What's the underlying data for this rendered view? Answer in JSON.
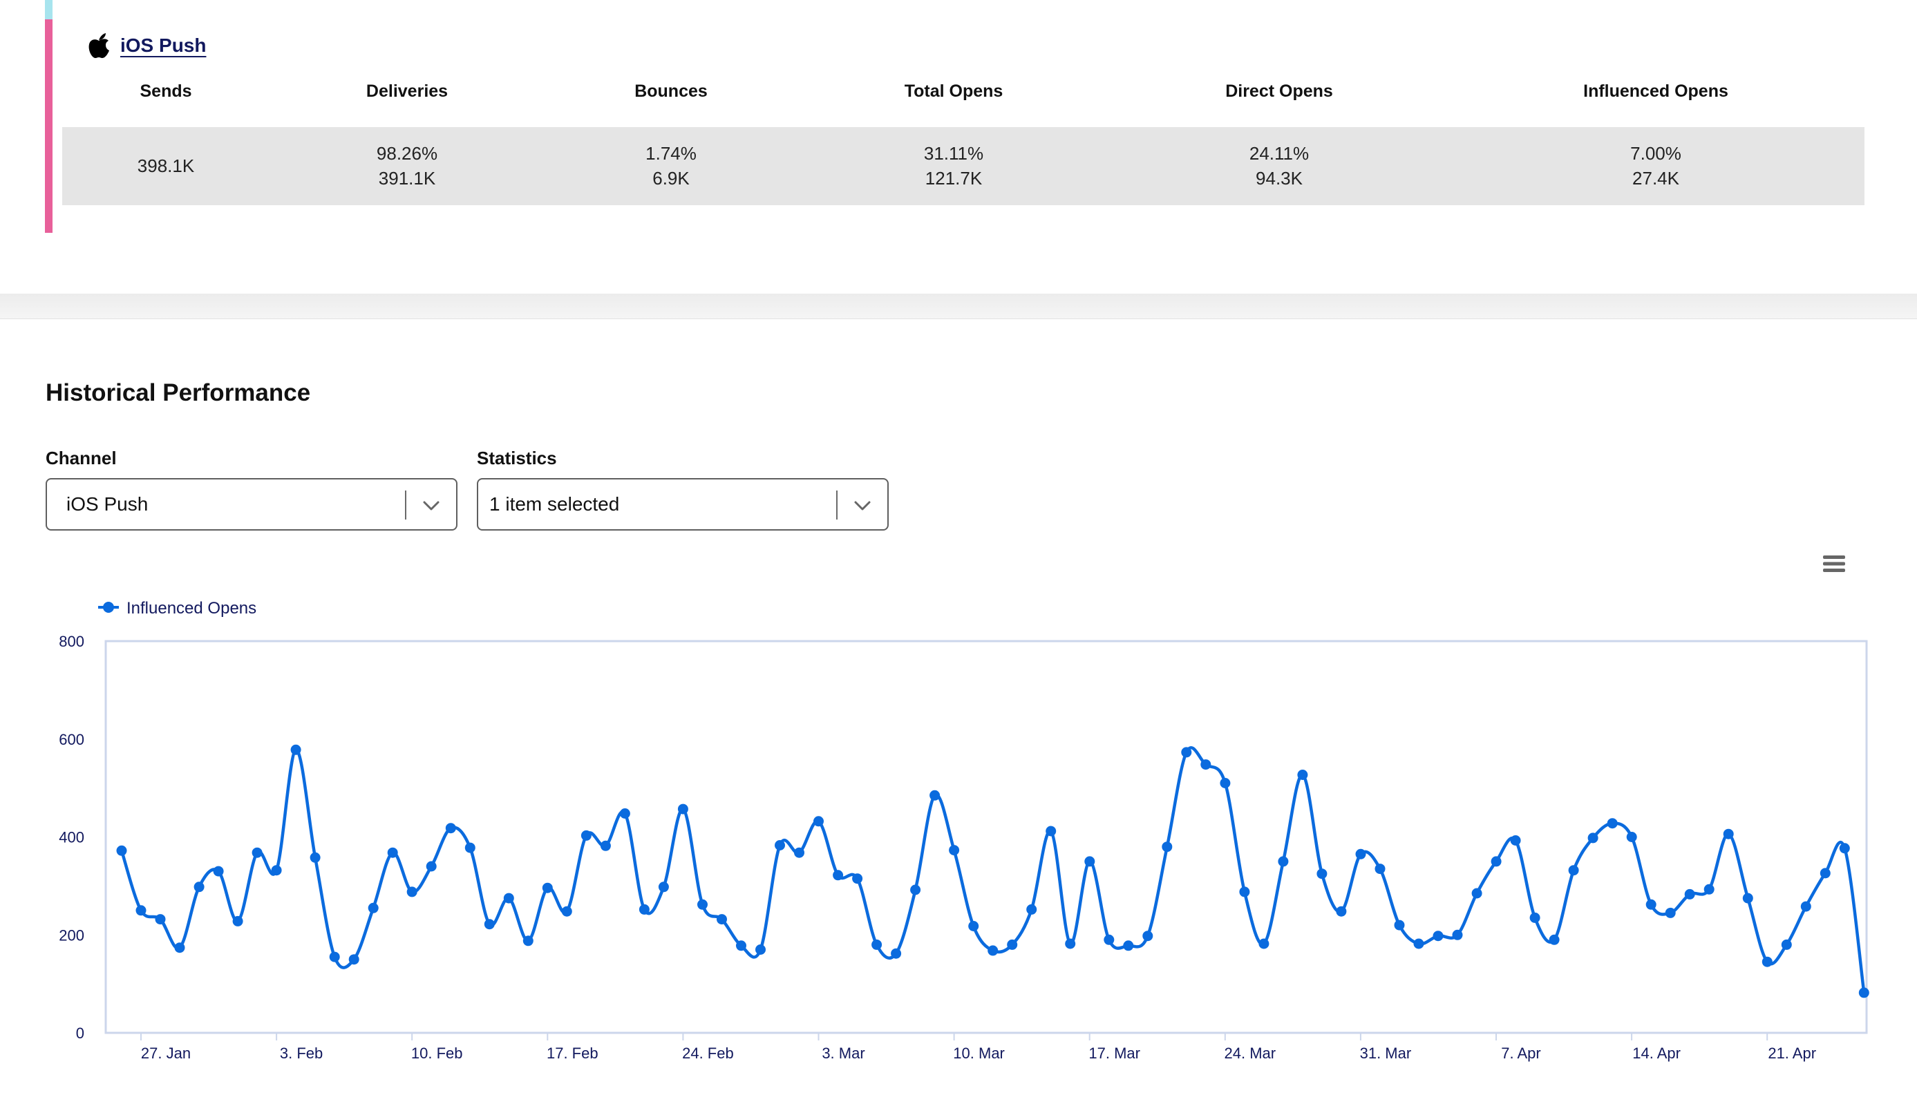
{
  "channel_summary": {
    "channel_name": "iOS Push",
    "columns": [
      {
        "label": "Sends",
        "line1": "398.1K",
        "line2": ""
      },
      {
        "label": "Deliveries",
        "line1": "98.26%",
        "line2": "391.1K"
      },
      {
        "label": "Bounces",
        "line1": "1.74%",
        "line2": "6.9K"
      },
      {
        "label": "Total Opens",
        "line1": "31.11%",
        "line2": "121.7K"
      },
      {
        "label": "Direct Opens",
        "line1": "24.11%",
        "line2": "94.3K"
      },
      {
        "label": "Influenced Opens",
        "line1": "7.00%",
        "line2": "27.4K"
      }
    ],
    "accent_colors": {
      "top": "#a7e4ee",
      "channel": "#e8609a"
    }
  },
  "historical": {
    "title": "Historical Performance",
    "channel_filter": {
      "label": "Channel",
      "value": "iOS Push"
    },
    "statistics_filter": {
      "label": "Statistics",
      "value": "1 item selected"
    },
    "menu_icon": "hamburger-menu-icon"
  },
  "chart_data": {
    "type": "line",
    "series": [
      {
        "name": "Influenced Opens",
        "color": "#0b6bde",
        "values": [
          372,
          250,
          232,
          174,
          298,
          330,
          228,
          368,
          332,
          578,
          358,
          155,
          150,
          255,
          368,
          288,
          340,
          418,
          378,
          222,
          275,
          188,
          296,
          248,
          403,
          382,
          448,
          252,
          298,
          457,
          262,
          232,
          178,
          170,
          383,
          368,
          432,
          322,
          315,
          180,
          162,
          292,
          485,
          373,
          218,
          168,
          180,
          252,
          412,
          182,
          350,
          190,
          178,
          198,
          380,
          573,
          548,
          510,
          288,
          182,
          350,
          527,
          325,
          248,
          365,
          335,
          220,
          182,
          198,
          200,
          285,
          350,
          393,
          235,
          190,
          332,
          398,
          428,
          400,
          262,
          245,
          283,
          293,
          406,
          275,
          145,
          180,
          258,
          326,
          377,
          82
        ]
      }
    ],
    "x_start": "2019-01-25",
    "x_interval": "1 day",
    "x_tick_labels": [
      "27. Jan",
      "3. Feb",
      "10. Feb",
      "17. Feb",
      "24. Feb",
      "3. Mar",
      "10. Mar",
      "17. Mar",
      "24. Mar",
      "31. Mar",
      "7. Apr",
      "14. Apr",
      "21. Apr"
    ],
    "y_ticks": [
      0,
      200,
      400,
      600,
      800
    ],
    "ylim": [
      0,
      800
    ],
    "legend_position": "top-left",
    "grid": false
  }
}
